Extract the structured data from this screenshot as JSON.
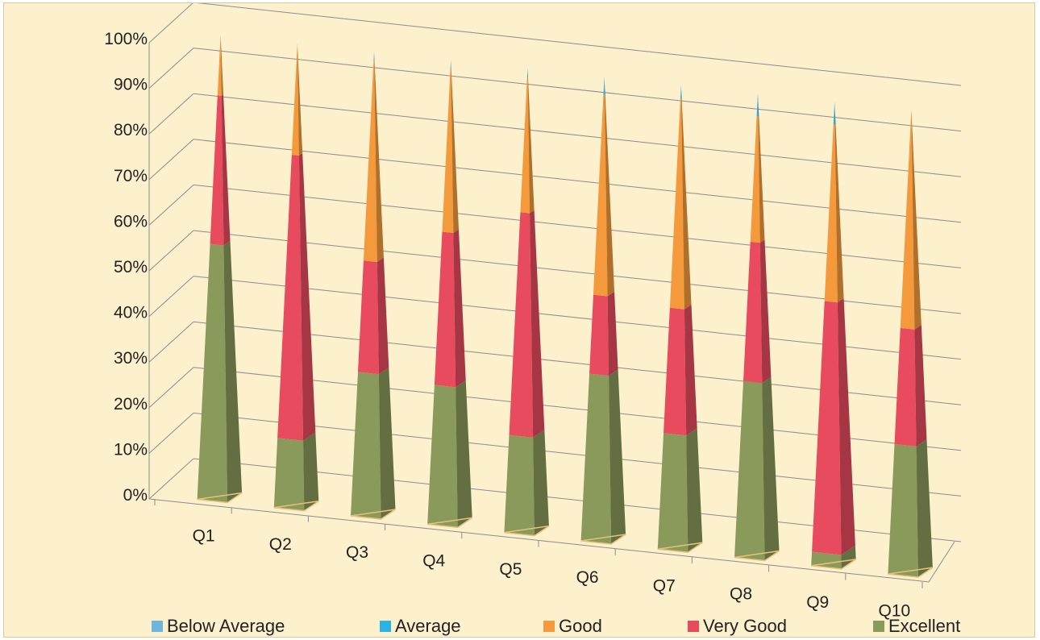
{
  "chart_data": {
    "type": "bar",
    "stacked": true,
    "percent_stacked": true,
    "shape": "3d-pyramid",
    "categories": [
      "Q1",
      "Q2",
      "Q3",
      "Q4",
      "Q5",
      "Q6",
      "Q7",
      "Q8",
      "Q9",
      "Q10"
    ],
    "series": [
      {
        "name": "Excellent",
        "color": "#8a9a5b",
        "values": [
          55,
          15,
          31,
          30,
          21,
          36,
          25,
          38,
          3,
          28
        ]
      },
      {
        "name": "Very Good",
        "color": "#e84b5e",
        "values": [
          32,
          61,
          24,
          33,
          48,
          17,
          27,
          30,
          54,
          25
        ]
      },
      {
        "name": "Good",
        "color": "#f49a3c",
        "values": [
          13,
          24,
          43,
          35,
          29,
          43,
          45,
          27,
          38,
          47
        ]
      },
      {
        "name": "Average",
        "color": "#2eb2e4",
        "values": [
          0,
          0,
          2,
          2,
          2,
          4,
          3,
          5,
          5,
          0
        ]
      },
      {
        "name": "Below Average",
        "color": "#6fb6df",
        "values": [
          0,
          0,
          0,
          0,
          0,
          0,
          0,
          0,
          0,
          0
        ]
      }
    ],
    "ylim": [
      0,
      100
    ],
    "y_ticks": [
      "0%",
      "10%",
      "20%",
      "30%",
      "40%",
      "50%",
      "60%",
      "70%",
      "80%",
      "90%",
      "100%"
    ],
    "grid": true,
    "legend_position": "bottom",
    "legend_order": [
      "Below Average",
      "Average",
      "Good",
      "Very Good",
      "Excellent"
    ]
  }
}
